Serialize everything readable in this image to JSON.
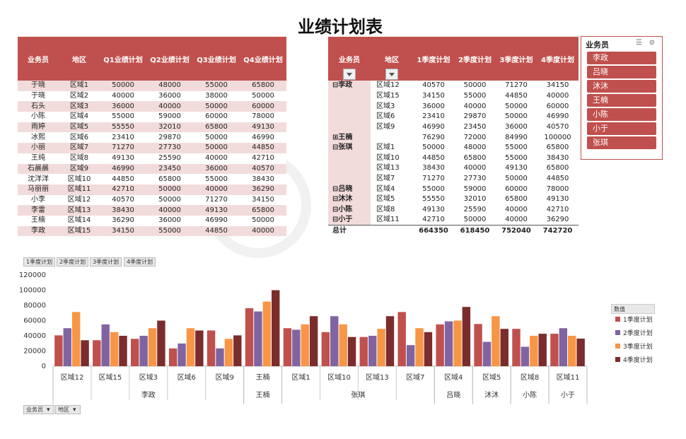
{
  "title": "业绩计划表",
  "table": {
    "headers": [
      "业务员",
      "地区",
      "Q1业绩计划",
      "Q2业绩计划",
      "Q3业绩计划",
      "Q4业绩计划"
    ],
    "rows": [
      [
        "于晓",
        "区域1",
        "50000",
        "48000",
        "55000",
        "65800"
      ],
      [
        "于晓",
        "区域2",
        "40000",
        "36000",
        "38000",
        "50000"
      ],
      [
        "石头",
        "区域3",
        "36000",
        "40000",
        "50000",
        "60000"
      ],
      [
        "小陈",
        "区域4",
        "55000",
        "59000",
        "60000",
        "78000"
      ],
      [
        "雨婷",
        "区域5",
        "55550",
        "32010",
        "65800",
        "49130"
      ],
      [
        "冰熙",
        "区域6",
        "23410",
        "29870",
        "50000",
        "46990"
      ],
      [
        "小丽",
        "区域7",
        "71270",
        "27730",
        "50000",
        "44850"
      ],
      [
        "王纯",
        "区域8",
        "49130",
        "25590",
        "40000",
        "42710"
      ],
      [
        "石晨晨",
        "区域9",
        "46990",
        "23450",
        "36000",
        "40570"
      ],
      [
        "沈洋洋",
        "区域10",
        "44850",
        "65800",
        "55000",
        "38430"
      ],
      [
        "马丽丽",
        "区域11",
        "42710",
        "50000",
        "40000",
        "36290"
      ],
      [
        "小李",
        "区域12",
        "40570",
        "50000",
        "71270",
        "34150"
      ],
      [
        "李雷",
        "区域13",
        "38430",
        "40000",
        "49130",
        "65800"
      ],
      [
        "王楠",
        "区域14",
        "36290",
        "36000",
        "46990",
        "50000"
      ],
      [
        "李政",
        "区域15",
        "34150",
        "55000",
        "44850",
        "40000"
      ]
    ]
  },
  "pivot": {
    "headers": [
      "业务员",
      "地区",
      "1季度计划",
      "2季度计划",
      "3季度计划",
      "4季度计划"
    ],
    "rows": [
      [
        "⊟李政",
        "区域12",
        "40570",
        "50000",
        "71270",
        "34150"
      ],
      [
        "",
        "区域15",
        "34150",
        "55000",
        "44850",
        "40000"
      ],
      [
        "",
        "区域3",
        "36000",
        "40000",
        "50000",
        "60000"
      ],
      [
        "",
        "区域6",
        "23410",
        "29870",
        "50000",
        "46990"
      ],
      [
        "",
        "区域9",
        "46990",
        "23450",
        "36000",
        "40570"
      ],
      [
        "⊞王楠",
        "",
        "76290",
        "72000",
        "84990",
        "100000"
      ],
      [
        "⊟张琪",
        "区域1",
        "50000",
        "48000",
        "55000",
        "65800"
      ],
      [
        "",
        "区域10",
        "44850",
        "65800",
        "55000",
        "38430"
      ],
      [
        "",
        "区域13",
        "38430",
        "40000",
        "49130",
        "65800"
      ],
      [
        "",
        "区域7",
        "71270",
        "27730",
        "50000",
        "44850"
      ],
      [
        "⊟吕晓",
        "区域4",
        "55000",
        "59000",
        "60000",
        "78000"
      ],
      [
        "⊟沐沐",
        "区域5",
        "55550",
        "32010",
        "65800",
        "49130"
      ],
      [
        "⊟小陈",
        "区域8",
        "49130",
        "25590",
        "40000",
        "42710"
      ],
      [
        "⊟小于",
        "区域11",
        "42710",
        "50000",
        "40000",
        "36290"
      ]
    ],
    "total": [
      "总计",
      "",
      "664350",
      "618450",
      "752040",
      "742720"
    ]
  },
  "slicer": {
    "title": "业务员",
    "filter_icon": "multi-select-icon",
    "clear_icon": "clear-filter-icon",
    "items": [
      "李政",
      "吕晓",
      "沐沐",
      "王楠",
      "小陈",
      "小于",
      "张琪"
    ]
  },
  "field_buttons": {
    "values": [
      "1季度计划",
      "2季度计划",
      "3季度计划",
      "4季度计划"
    ],
    "axis": [
      "业务员",
      "地区"
    ]
  },
  "chart_data": {
    "type": "bar",
    "categories": [
      "区域12",
      "区域15",
      "区域3",
      "区域6",
      "区域9",
      "王楠",
      "区域1",
      "区域10",
      "区域13",
      "区域7",
      "区域4",
      "区域5",
      "区域8",
      "区域11"
    ],
    "groups": [
      {
        "label": "李政",
        "count": 5
      },
      {
        "label": "王楠",
        "count": 1
      },
      {
        "label": "张琪",
        "count": 4
      },
      {
        "label": "吕晓",
        "count": 1
      },
      {
        "label": "沐沐",
        "count": 1
      },
      {
        "label": "小陈",
        "count": 1
      },
      {
        "label": "小于",
        "count": 1
      }
    ],
    "series": [
      {
        "name": "1季度计划",
        "color": "#c0504d",
        "values": [
          40570,
          34150,
          36000,
          23410,
          46990,
          76290,
          50000,
          44850,
          38430,
          71270,
          55000,
          55550,
          49130,
          42710
        ]
      },
      {
        "name": "2季度计划",
        "color": "#8064a2",
        "values": [
          50000,
          55000,
          40000,
          29870,
          23450,
          72000,
          48000,
          65800,
          40000,
          27730,
          59000,
          32010,
          25590,
          50000
        ]
      },
      {
        "name": "3季度计划",
        "color": "#f79646",
        "values": [
          71270,
          44850,
          50000,
          50000,
          36000,
          84990,
          55000,
          55000,
          49130,
          50000,
          60000,
          65800,
          40000,
          40000
        ]
      },
      {
        "name": "4季度计划",
        "color": "#7b2c2c",
        "values": [
          34150,
          40000,
          60000,
          46990,
          40570,
          100000,
          65800,
          38430,
          65800,
          44850,
          78000,
          49130,
          42710,
          36290
        ]
      }
    ],
    "ylim": [
      0,
      120000
    ],
    "yticks": [
      "0",
      "20000",
      "40000",
      "60000",
      "80000",
      "100000",
      "120000"
    ],
    "legend_title": "数值",
    "legend_position": "right",
    "grid": false
  }
}
